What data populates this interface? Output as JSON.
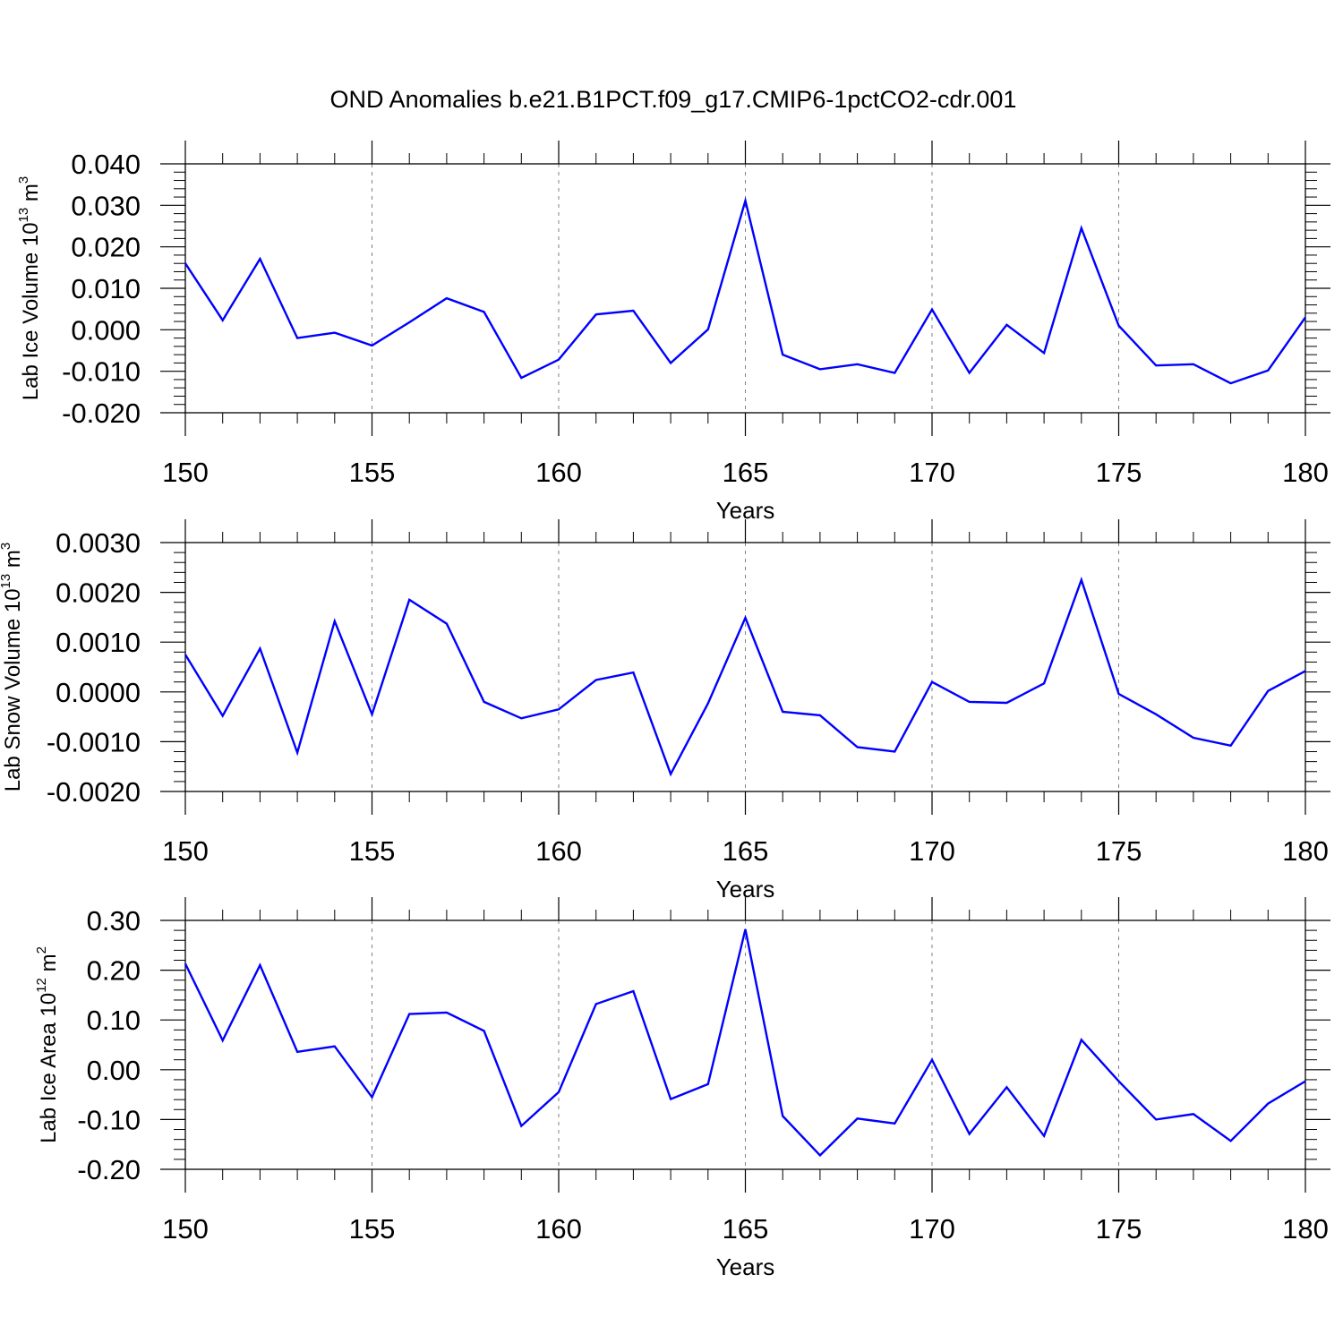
{
  "figure_title": "OND Anomalies b.e21.B1PCT.f09_g17.CMIP6-1pctCO2-cdr.001",
  "colors": {
    "line": "#0000ff",
    "axes": "#000000",
    "grid": "#808080"
  },
  "chart_data": [
    {
      "type": "line",
      "title": "",
      "xlabel": "Years",
      "ylabel": {
        "prefix": "Lab Ice Volume 10",
        "exponent": "13",
        "unit": " m",
        "unit_exponent": "3"
      },
      "xlim": [
        150,
        180
      ],
      "ylim": [
        -0.02,
        0.04
      ],
      "x_ticks": [
        "150",
        "155",
        "160",
        "165",
        "170",
        "175",
        "180"
      ],
      "y_tick_values": [
        -0.02,
        -0.01,
        0.0,
        0.01,
        0.02,
        0.03,
        0.04
      ],
      "y_ticks": [
        "-0.020",
        "-0.010",
        "0.000",
        "0.010",
        "0.020",
        "0.030",
        "0.040"
      ],
      "grid": "vertical dashed at x major ticks",
      "series": [
        {
          "x": [
            150,
            151,
            152,
            153,
            154,
            155,
            156,
            157,
            158,
            159,
            160,
            161,
            162,
            163,
            164,
            165,
            166,
            167,
            168,
            169,
            170,
            171,
            172,
            173,
            174,
            175,
            176,
            177,
            178,
            179,
            180
          ],
          "values": [
            0.016,
            0.0023,
            0.0171,
            -0.002,
            -0.0007,
            -0.0038,
            0.0018,
            0.0076,
            0.0043,
            -0.0116,
            -0.0072,
            0.0037,
            0.0046,
            -0.008,
            0.0001,
            0.0311,
            -0.006,
            -0.0095,
            -0.0083,
            -0.0104,
            0.0049,
            -0.0104,
            0.0012,
            -0.0056,
            0.0245,
            0.001,
            -0.0086,
            -0.0083,
            -0.0129,
            -0.0098,
            0.003
          ]
        }
      ]
    },
    {
      "type": "line",
      "title": "",
      "xlabel": "Years",
      "ylabel": {
        "prefix": "Lab Snow Volume 10",
        "exponent": "13",
        "unit": " m",
        "unit_exponent": "3"
      },
      "xlim": [
        150,
        180
      ],
      "ylim": [
        -0.002,
        0.003
      ],
      "x_ticks": [
        "150",
        "155",
        "160",
        "165",
        "170",
        "175",
        "180"
      ],
      "y_tick_values": [
        -0.002,
        -0.001,
        0.0,
        0.001,
        0.002,
        0.003
      ],
      "y_ticks": [
        "-0.0020",
        "-0.0010",
        "0.0000",
        "0.0010",
        "0.0020",
        "0.0030"
      ],
      "grid": "vertical dashed at x major ticks",
      "series": [
        {
          "x": [
            150,
            151,
            152,
            153,
            154,
            155,
            156,
            157,
            158,
            159,
            160,
            161,
            162,
            163,
            164,
            165,
            166,
            167,
            168,
            169,
            170,
            171,
            172,
            173,
            174,
            175,
            176,
            177,
            178,
            179,
            180
          ],
          "values": [
            0.00075,
            -0.00048,
            0.00087,
            -0.00122,
            0.00142,
            -0.00045,
            0.00185,
            0.00137,
            -0.0002,
            -0.00053,
            -0.00035,
            0.00024,
            0.00039,
            -0.00165,
            -0.00023,
            0.00149,
            -0.0004,
            -0.00047,
            -0.00111,
            -0.0012,
            0.0002,
            -0.0002,
            -0.00022,
            0.00017,
            0.00225,
            -4e-05,
            -0.00045,
            -0.00092,
            -0.00108,
            2e-05,
            0.00042
          ]
        }
      ]
    },
    {
      "type": "line",
      "title": "",
      "xlabel": "Years",
      "ylabel": {
        "prefix": "Lab Ice Area 10",
        "exponent": "12",
        "unit": " m",
        "unit_exponent": "2"
      },
      "xlim": [
        150,
        180
      ],
      "ylim": [
        -0.2,
        0.3
      ],
      "x_ticks": [
        "150",
        "155",
        "160",
        "165",
        "170",
        "175",
        "180"
      ],
      "y_tick_values": [
        -0.2,
        -0.1,
        0.0,
        0.1,
        0.2,
        0.3
      ],
      "y_ticks": [
        "-0.20",
        "-0.10",
        "0.00",
        "0.10",
        "0.20",
        "0.30"
      ],
      "grid": "vertical dashed at x major ticks",
      "series": [
        {
          "x": [
            150,
            151,
            152,
            153,
            154,
            155,
            156,
            157,
            158,
            159,
            160,
            161,
            162,
            163,
            164,
            165,
            166,
            167,
            168,
            169,
            170,
            171,
            172,
            173,
            174,
            175,
            176,
            177,
            178,
            179,
            180
          ],
          "values": [
            0.213,
            0.059,
            0.21,
            0.036,
            0.047,
            -0.055,
            0.112,
            0.115,
            0.078,
            -0.113,
            -0.045,
            0.132,
            0.158,
            -0.059,
            -0.029,
            0.282,
            -0.093,
            -0.172,
            -0.098,
            -0.108,
            0.02,
            -0.129,
            -0.035,
            -0.133,
            0.06,
            -0.023,
            -0.1,
            -0.089,
            -0.143,
            -0.068,
            -0.023
          ]
        }
      ]
    }
  ]
}
